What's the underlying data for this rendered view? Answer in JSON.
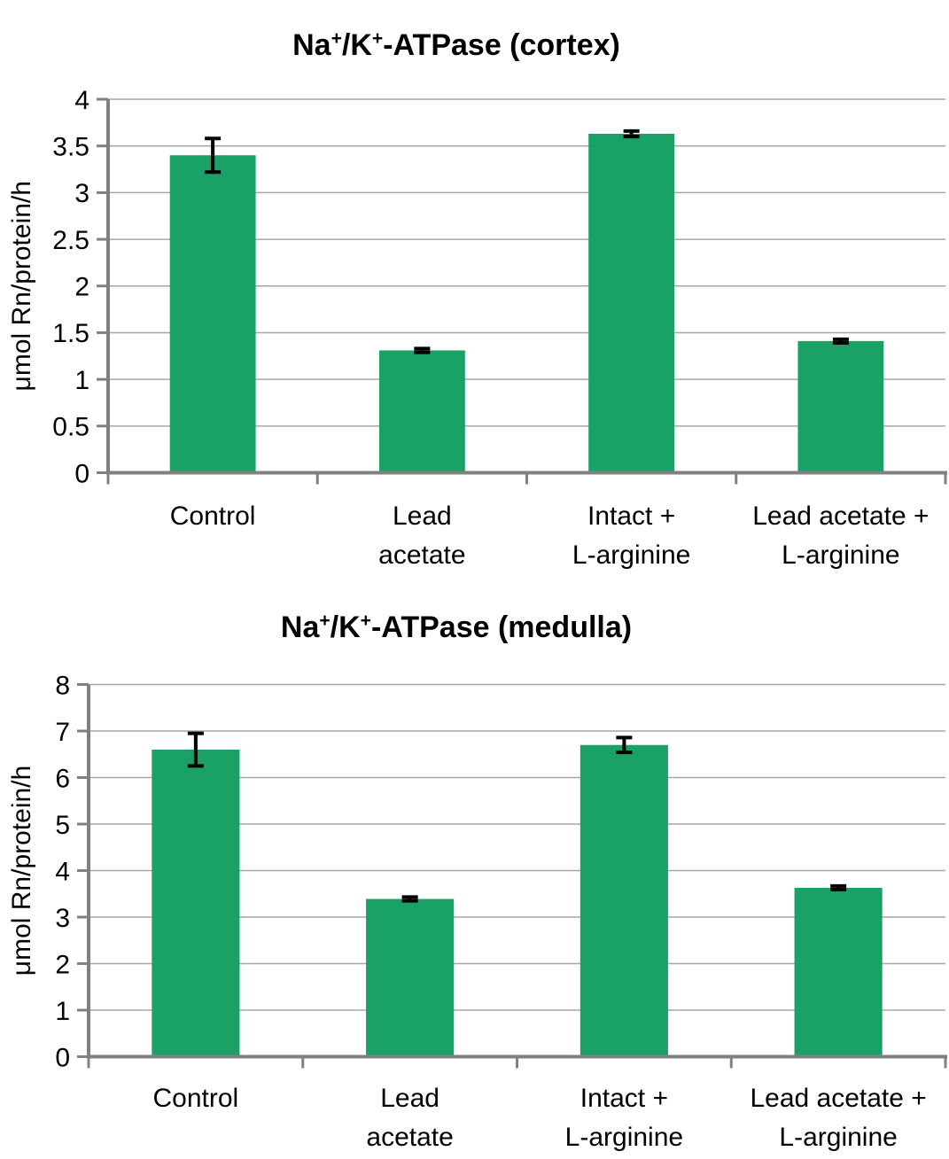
{
  "styles": {
    "background": "#FFFFFF",
    "bar_color": "#1AA266",
    "gridline_color": "#A6A6A6",
    "axis_color": "#808080",
    "error_bar_color": "#000000",
    "text_color": "#000000"
  },
  "chart_data": [
    {
      "type": "bar",
      "title": "Na+/K+-ATPase (cortex)",
      "title_parts": [
        {
          "t": "Na",
          "sup": false
        },
        {
          "t": "+",
          "sup": true
        },
        {
          "t": "/K",
          "sup": false
        },
        {
          "t": "+",
          "sup": true
        },
        {
          "t": "-ATPase (cortex)",
          "sup": false
        }
      ],
      "ylabel": "μmol Rn/protein/h",
      "xlabel": "",
      "categories": [
        "Control",
        "Lead acetate",
        "Intact + L-arginine",
        "Lead acetate + L-arginine"
      ],
      "category_label_lines": [
        [
          "Control"
        ],
        [
          "Lead",
          "acetate"
        ],
        [
          "Intact +",
          "L-arginine"
        ],
        [
          "Lead acetate +",
          "L-arginine"
        ]
      ],
      "values": [
        3.4,
        1.31,
        3.63,
        1.41
      ],
      "errors": [
        0.18,
        0.02,
        0.03,
        0.02
      ],
      "ylim": [
        0,
        4
      ],
      "ytick_step": 0.5,
      "ytick_labels": [
        "0",
        "0.5",
        "1",
        "1.5",
        "2",
        "2.5",
        "3",
        "3.5",
        "4"
      ],
      "grid": true,
      "legend": "none"
    },
    {
      "type": "bar",
      "title": "Na+/K+-ATPase (medulla)",
      "title_parts": [
        {
          "t": "Na",
          "sup": false
        },
        {
          "t": "+",
          "sup": true
        },
        {
          "t": "/K",
          "sup": false
        },
        {
          "t": "+",
          "sup": true
        },
        {
          "t": "-ATPase (medulla)",
          "sup": false
        }
      ],
      "ylabel": "μmol Rn/protein/h",
      "xlabel": "",
      "categories": [
        "Control",
        "Lead acetate",
        "Intact + L-arginine",
        "Lead acetate + L-arginine"
      ],
      "category_label_lines": [
        [
          "Control"
        ],
        [
          "Lead",
          "acetate"
        ],
        [
          "Intact +",
          "L-arginine"
        ],
        [
          "Lead acetate +",
          "L-arginine"
        ]
      ],
      "values": [
        6.6,
        3.39,
        6.7,
        3.63
      ],
      "errors": [
        0.35,
        0.04,
        0.16,
        0.04
      ],
      "ylim": [
        0,
        8
      ],
      "ytick_step": 1,
      "ytick_labels": [
        "0",
        "1",
        "2",
        "3",
        "4",
        "5",
        "6",
        "7",
        "8"
      ],
      "grid": true,
      "legend": "none"
    }
  ]
}
